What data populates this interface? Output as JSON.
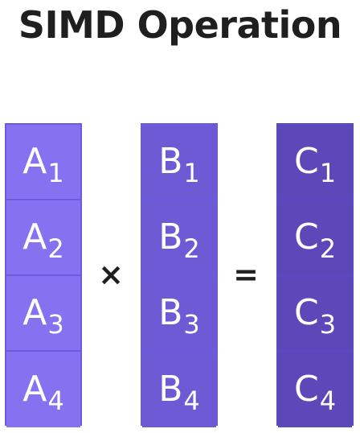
{
  "title": "SIMD Operation",
  "operators": {
    "times": "×",
    "equals": "="
  },
  "columns": [
    {
      "name": "A",
      "cells": [
        {
          "base": "A",
          "sub": "1"
        },
        {
          "base": "A",
          "sub": "2"
        },
        {
          "base": "A",
          "sub": "3"
        },
        {
          "base": "A",
          "sub": "4"
        }
      ]
    },
    {
      "name": "B",
      "cells": [
        {
          "base": "B",
          "sub": "1"
        },
        {
          "base": "B",
          "sub": "2"
        },
        {
          "base": "B",
          "sub": "3"
        },
        {
          "base": "B",
          "sub": "4"
        }
      ]
    },
    {
      "name": "C",
      "cells": [
        {
          "base": "C",
          "sub": "1"
        },
        {
          "base": "C",
          "sub": "2"
        },
        {
          "base": "C",
          "sub": "3"
        },
        {
          "base": "C",
          "sub": "4"
        }
      ]
    }
  ],
  "colors": {
    "column_a": "#8672f0",
    "column_b": "#6e5ad4",
    "column_c": "#5c48b8",
    "border": "#6a5be0",
    "text_dark": "#1f1f1f"
  }
}
